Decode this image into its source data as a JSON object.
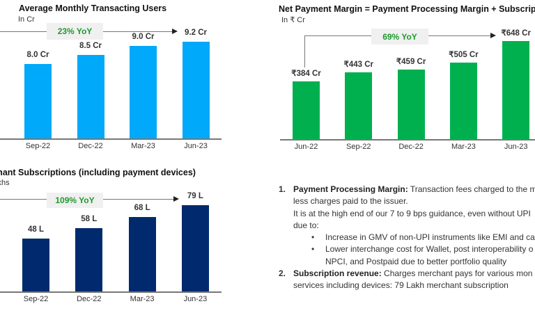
{
  "chart_data": [
    {
      "type": "bar",
      "title": "Average Monthly Transacting Users",
      "subtitle": "In Cr",
      "categories": [
        "Sep-22",
        "Dec-22",
        "Mar-23",
        "Jun-23"
      ],
      "values": [
        8.0,
        8.5,
        9.0,
        9.2
      ],
      "data_labels": [
        "8.0 Cr",
        "8.5 Cr",
        "9.0 Cr",
        "9.2 Cr"
      ],
      "annotation": "23% YoY",
      "color": "#00a9f9",
      "grid": false
    },
    {
      "type": "bar",
      "title": "Net Payment Margin = Payment Processing Margin + Subscriptio",
      "subtitle": "In ₹ Cr",
      "categories": [
        "Jun-22",
        "Sep-22",
        "Dec-22",
        "Mar-23",
        "Jun-23"
      ],
      "values": [
        384,
        443,
        459,
        505,
        648
      ],
      "data_labels": [
        "₹384 Cr",
        "₹443 Cr",
        "₹459 Cr",
        "₹505 Cr",
        "₹648 Cr"
      ],
      "annotation": "69% YoY",
      "color": "#00b04f",
      "grid": false
    },
    {
      "type": "bar",
      "title": "Merchant Subscriptions (including payment devices)",
      "subtitle": "In Lakhs",
      "categories": [
        "Sep-22",
        "Dec-22",
        "Mar-23",
        "Jun-23"
      ],
      "values": [
        48,
        58,
        68,
        79
      ],
      "data_labels": [
        "48 L",
        "58 L",
        "68 L",
        "79 L"
      ],
      "annotation": "109% YoY",
      "color": "#012a6e",
      "grid": false
    }
  ],
  "notes": {
    "item1": {
      "number": "1.",
      "heading": "Payment Processing Margin:",
      "line1": " Transaction fees charged to the m",
      "line2": "less charges paid to the issuer.",
      "line3": "It is at the high end of our 7 to 9 bps guidance, even without UPI",
      "line4": "due to:",
      "bullets": [
        {
          "marker": "•",
          "lines": [
            "Increase in GMV of non-UPI instruments like EMI and ca"
          ]
        },
        {
          "marker": "•",
          "lines": [
            "Lower interchange cost for Wallet, post interoperability o",
            "NPCI, and Postpaid due to better portfolio quality"
          ]
        }
      ]
    },
    "item2": {
      "number": "2.",
      "heading": "Subscription revenue:",
      "line1": " Charges merchant pays for various mon",
      "line2": "services including devices: 79 Lakh merchant subscription"
    }
  }
}
